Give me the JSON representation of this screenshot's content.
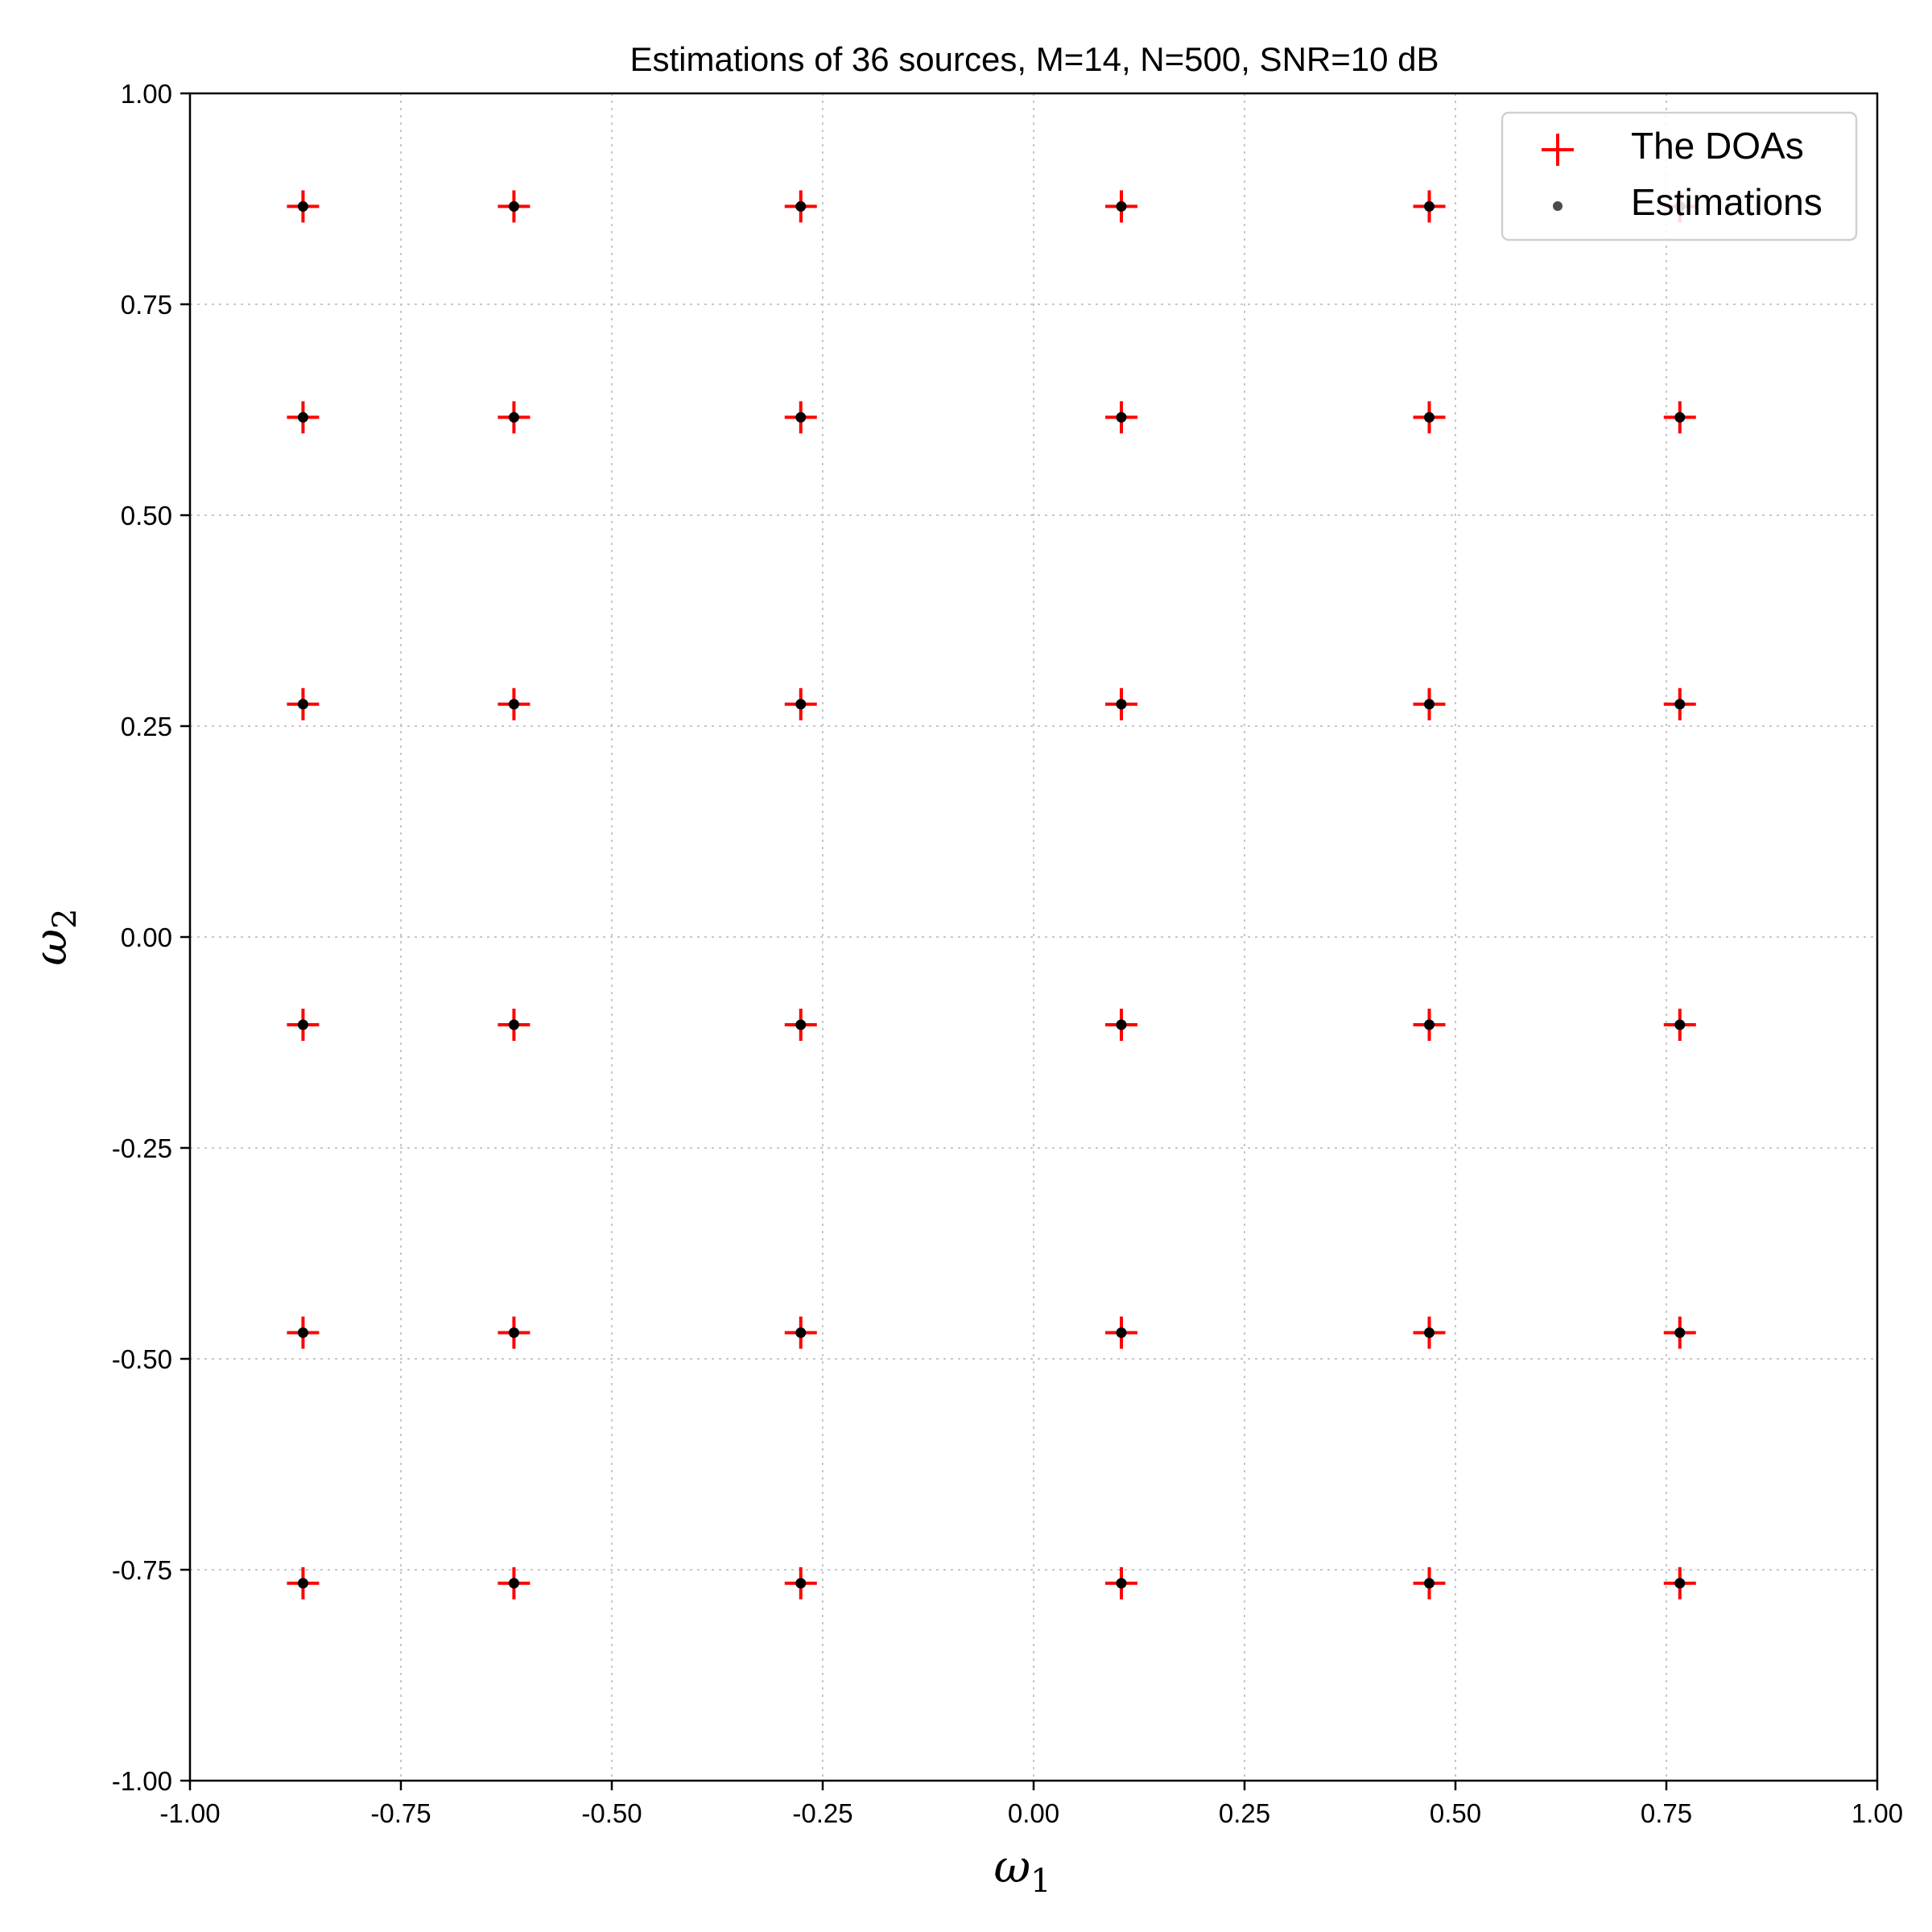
{
  "chart_data": {
    "type": "scatter",
    "title": "Estimations of 36 sources, M=14, N=500, SNR=10 dB",
    "xlabel": "ω",
    "xlabel_sub": "1",
    "ylabel": "ω",
    "ylabel_sub": "2",
    "xlim": [
      -1.0,
      1.0
    ],
    "ylim": [
      -1.0,
      1.0
    ],
    "xticks": [
      "-1.00",
      "-0.75",
      "-0.50",
      "-0.25",
      "0.00",
      "0.25",
      "0.50",
      "0.75",
      "1.00"
    ],
    "yticks": [
      "-1.00",
      "-0.75",
      "-0.50",
      "-0.25",
      "0.00",
      "0.25",
      "0.50",
      "0.75",
      "1.00"
    ],
    "grid": true,
    "legend_position": "top-right",
    "grid_x": [
      -0.866,
      -0.616,
      -0.276,
      0.104,
      0.469,
      0.766
    ],
    "grid_y": [
      0.866,
      0.616,
      0.276,
      -0.104,
      -0.469,
      -0.766
    ],
    "series": [
      {
        "name": "The DOAs",
        "marker": "plus",
        "color": "#ff0000",
        "note": "points on every grid_x × grid_y pair"
      },
      {
        "name": "Estimations",
        "marker": "dot",
        "color": "#000000",
        "note": "points on every grid_x × grid_y pair"
      }
    ]
  }
}
